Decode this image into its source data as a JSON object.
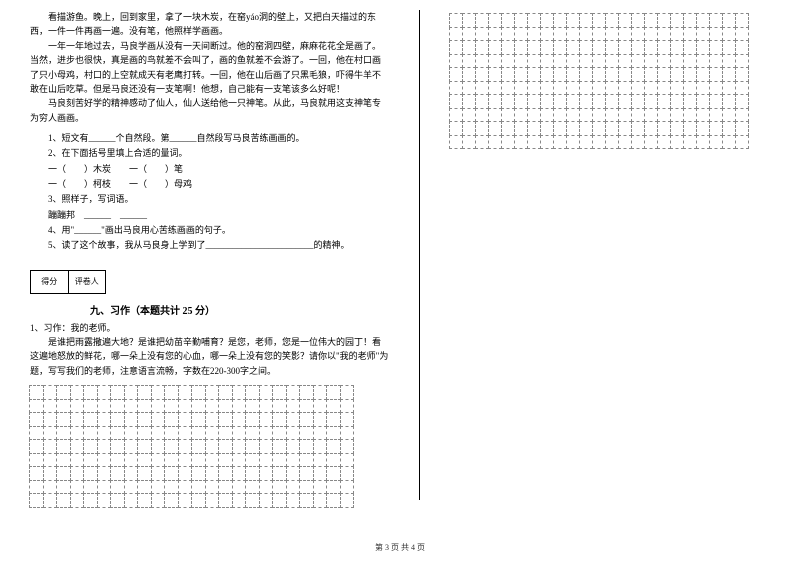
{
  "passage": {
    "p1": "看描游鱼。晚上，回到家里，拿了一块木炭，在窑yáo洞的壁上，又把白天描过的东西，一件一件再画一遍。没有笔，他照样学画画。",
    "p2": "一年一年地过去，马良学画从没有一天间断过。他的窑洞四壁，麻麻花花全是画了。当然，进步也很快，真是画的鸟就差不会叫了，画的鱼就差不会游了。一回，他在村口画了只小母鸡，村口的上空就成天有老鹰打转。一回，他在山后画了只黑毛狼，吓得牛羊不敢在山后吃草。但是马良还没有一支笔啊！他想，自己能有一支笔该多么好呢！",
    "p3": "马良刻苦好学的精神感动了仙人，仙人送给他一只神笔。从此，马良就用这支神笔专为穷人画画。"
  },
  "questions": {
    "q1": "1、短文有______个自然段。第______自然段写马良苦练画画的。",
    "q2": "2、在下面括号里填上合适的量词。",
    "q2a": "一（　　）木炭　　一（　　）笔",
    "q2b": "一（　　）柯枝　　一（　　）母鸡",
    "q3": "3、照样子，写词语。",
    "q3a": "蹦蹦邦　______　______",
    "q4": "4、用\"______\"画出马良用心苦练画画的句子。",
    "q5": "5、读了这个故事，我从马良身上学到了________________________的精神。"
  },
  "scorebox": {
    "label1": "得分",
    "label2": "评卷人"
  },
  "section9": {
    "title": "九、习作（本题共计 25 分）",
    "label": "1、习作：我的老师。",
    "intro": "是谁把雨露撒遍大地？是谁把幼苗辛勤哺育？是您，老师，您是一位伟大的园丁！看这遍地怒放的鲜花，哪一朵上没有您的心血，哪一朵上没有您的笑影？请你以\"我的老师\"为题，写写我们的老师，注意语言流畅，字数在220-300字之间。"
  },
  "footer": "第 3 页 共 4 页",
  "grid": {
    "left_cols": 24,
    "left_rows": 9,
    "right_cols": 23,
    "right_rows": 10
  }
}
